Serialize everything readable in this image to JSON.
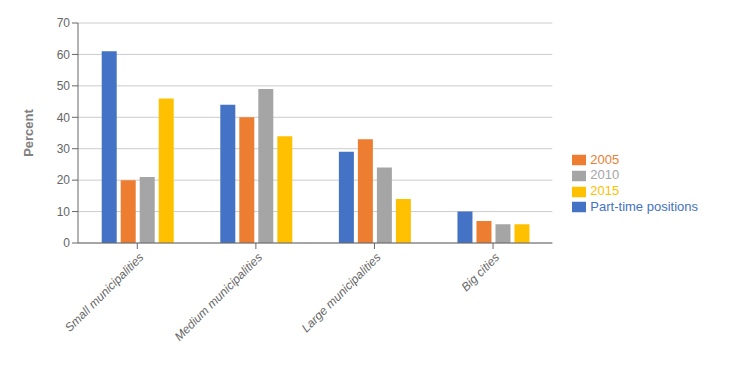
{
  "chart_data": {
    "type": "bar",
    "categories": [
      "Small municipalities",
      "Medium municipalities",
      "Large municipalities",
      "Big cities"
    ],
    "series": [
      {
        "name": "Part-time positions",
        "color": "#4472C4",
        "values": [
          61,
          44,
          29,
          10
        ]
      },
      {
        "name": "2005",
        "color": "#ED7D31",
        "values": [
          20,
          40,
          33,
          7
        ]
      },
      {
        "name": "2010",
        "color": "#A5A5A5",
        "values": [
          21,
          49,
          24,
          6
        ]
      },
      {
        "name": "2015",
        "color": "#FFC000",
        "values": [
          46,
          34,
          14,
          6
        ]
      }
    ],
    "ylabel": "Percent",
    "ylim": [
      0,
      70
    ],
    "yticks": [
      0,
      10,
      20,
      30,
      40,
      50,
      60,
      70
    ],
    "grid": true,
    "legend": "right"
  }
}
